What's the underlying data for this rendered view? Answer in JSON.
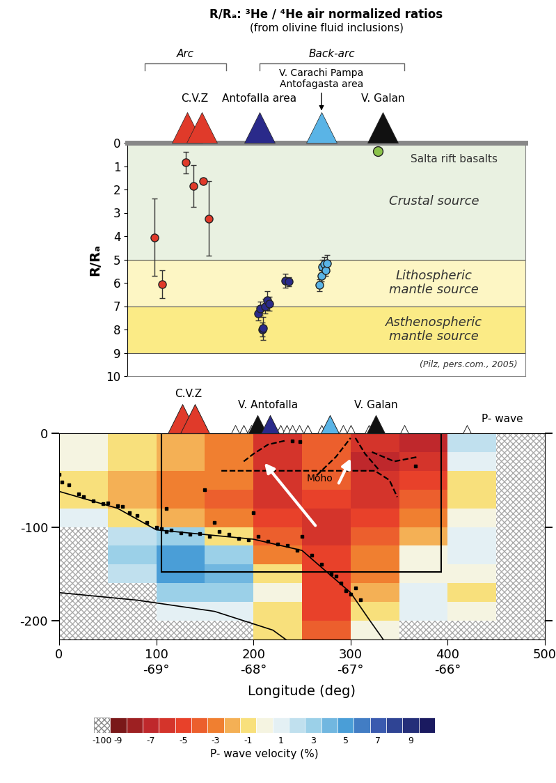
{
  "chart_data": [
    {
      "type": "scatter",
      "title": "R/Rₐ: ³He / ⁴He air normalized ratios",
      "subtitle": "(from olivine fluid inclusions)",
      "y_label": "R/Rₐ",
      "xlim": [
        70,
        480
      ],
      "ylim": [
        10,
        0
      ],
      "yticks": [
        0,
        1,
        2,
        3,
        4,
        5,
        6,
        7,
        8,
        9,
        10
      ],
      "tick_labels": "y",
      "series": [
        {
          "color": "#e03a2a",
          "x": [
            98,
            106,
            130,
            138,
            148,
            154
          ],
          "values": [
            4.05,
            6.05,
            0.85,
            1.85,
            1.65,
            3.25
          ],
          "errors": [
            1.65,
            0.6,
            0.45,
            0.9,
            0.12,
            1.6
          ]
        },
        {
          "color": "#2a2a8a",
          "x": [
            205,
            207,
            209,
            210,
            212,
            214,
            216,
            233,
            236
          ],
          "values": [
            7.3,
            7.1,
            8.0,
            7.95,
            7.0,
            6.75,
            6.9,
            5.9,
            5.95
          ],
          "errors": [
            0.3,
            0.3,
            0.3,
            0.5,
            0.3,
            0.4,
            0.3,
            0.3,
            0.2
          ]
        },
        {
          "color": "#5ab4e6",
          "x": [
            268,
            270,
            271,
            273,
            274,
            276
          ],
          "values": [
            6.1,
            5.7,
            5.3,
            5.2,
            5.45,
            5.15
          ],
          "errors": [
            0.25,
            0.25,
            0.3,
            0.3,
            0.25,
            0.35
          ]
        },
        {
          "color": "#8bc34a",
          "x": [
            328
          ],
          "values": [
            0.35
          ]
        }
      ],
      "bands": [
        {
          "range": [
            0,
            5
          ],
          "label": "Crustal source",
          "color": "#e9f1e1"
        },
        {
          "range": [
            5,
            7
          ],
          "label": "Lithospheric\nmantle source",
          "color": "#fdf6c4"
        },
        {
          "range": [
            7,
            9
          ],
          "label": "Asthenospheric\nmantle source",
          "color": "#fbeb86"
        }
      ],
      "annotations": [
        "Salta rift basalts",
        "(Pilz, pers.com., 2005)"
      ],
      "groups": [
        {
          "label": "Arc",
          "x": [
            88,
            172
          ]
        },
        {
          "label": "Back-arc",
          "x": [
            206,
            355
          ]
        }
      ],
      "volcanoes": [
        {
          "label": "C.V.Z",
          "x": [
            132,
            147
          ],
          "color": "#e03a2a"
        },
        {
          "label": "Antofalla area",
          "x": [
            206
          ],
          "color": "#2a2a8a"
        },
        {
          "label": "V. Carachi Pampa\nAntofagasta area",
          "x": [
            270
          ],
          "color": "#5ab4e6"
        },
        {
          "label": "V. Galan",
          "x": [
            333
          ],
          "color": "#111111"
        }
      ]
    },
    {
      "type": "heatmap",
      "x_label": "Longitude (deg)",
      "xlim": [
        0,
        500
      ],
      "ylim": [
        -220,
        0
      ],
      "xticks": [
        0,
        100,
        200,
        300,
        400,
        500
      ],
      "yticks": [
        0,
        -100,
        -200
      ],
      "longitude_ticks": [
        {
          "value": 100,
          "label": "-69°"
        },
        {
          "value": 200,
          "label": "-68°"
        },
        {
          "value": 300,
          "label": "-67°"
        },
        {
          "value": 400,
          "label": "-66°"
        }
      ],
      "x_edges": [
        0,
        50,
        100,
        150,
        200,
        250,
        300,
        350,
        400,
        450,
        500
      ],
      "y_edges": [
        0,
        -20,
        -40,
        -60,
        -80,
        -100,
        -120,
        -140,
        -160,
        -180,
        -200,
        -220
      ],
      "cells": [
        [
          0,
          -1,
          -2,
          -3,
          -6,
          -4,
          -6,
          -7,
          2,
          null
        ],
        [
          0,
          -1,
          -2,
          -3,
          -6,
          -4,
          -7,
          -6,
          1,
          null
        ],
        [
          -1,
          -2,
          -3,
          -3,
          -6,
          -4,
          -6,
          -5,
          -1,
          null
        ],
        [
          -1,
          -2,
          -3,
          -4,
          -6,
          -5,
          -6,
          -4,
          -1,
          null
        ],
        [
          1,
          -1,
          -2,
          -3,
          -5,
          -6,
          -5,
          -3,
          0,
          null
        ],
        [
          null,
          2,
          3,
          -1,
          -4,
          -6,
          -4,
          -2,
          1,
          null
        ],
        [
          null,
          3,
          5,
          3,
          -3,
          -5,
          -3,
          0,
          1,
          null
        ],
        [
          null,
          2,
          5,
          4,
          -1,
          -5,
          -3,
          0,
          0,
          null
        ],
        [
          null,
          null,
          3,
          3,
          0,
          -5,
          -2,
          1,
          -1,
          null
        ],
        [
          null,
          null,
          1,
          1,
          -1,
          -5,
          -1,
          1,
          0,
          null
        ],
        [
          null,
          null,
          null,
          null,
          -1,
          -4,
          0,
          null,
          null,
          null
        ]
      ],
      "colorbar": {
        "label": "P- wave velocity (%)",
        "range": [
          -10,
          10
        ],
        "boxes": [
          -100,
          -9,
          -8,
          -7,
          -6,
          -5,
          -4,
          -3,
          -2,
          -1,
          0,
          1,
          2,
          3,
          4,
          5,
          6,
          7,
          8,
          9,
          10
        ],
        "ticks": [
          -100,
          -9,
          -7,
          -5,
          -3,
          -1,
          1,
          3,
          5,
          7,
          9
        ]
      },
      "slab_lines": [
        {
          "x": [
            0,
            60,
            100,
            150,
            200,
            250,
            300,
            320,
            335
          ],
          "y": [
            -62,
            -80,
            -103,
            -108,
            -113,
            -125,
            -170,
            -200,
            -222
          ]
        },
        {
          "x": [
            0,
            80,
            160,
            220,
            236
          ],
          "y": [
            -170,
            -178,
            -190,
            -210,
            -222
          ]
        }
      ],
      "hypocenters": {
        "x": [
          0,
          3,
          10,
          20,
          25,
          35,
          45,
          50,
          60,
          65,
          72,
          80,
          90,
          100,
          105,
          110,
          115,
          125,
          135,
          145,
          155,
          165,
          175,
          185,
          195,
          205,
          215,
          225,
          235,
          245,
          250,
          260,
          270,
          280,
          285,
          290,
          295,
          300,
          305,
          310,
          110,
          150,
          160,
          200,
          240,
          248,
          367
        ],
        "y": [
          -44,
          -52,
          -55,
          -65,
          -68,
          -72,
          -75,
          -74,
          -77,
          -78,
          -85,
          -88,
          -95,
          -100,
          -102,
          -105,
          -103,
          -106,
          -108,
          -107,
          -110,
          -105,
          -108,
          -112,
          -114,
          -110,
          -115,
          -118,
          -120,
          -125,
          -110,
          -130,
          -140,
          -150,
          -152,
          -160,
          -168,
          -172,
          -165,
          -178,
          -80,
          -60,
          -95,
          -85,
          -8,
          -9,
          -35
        ]
      },
      "dashed_lines": [
        {
          "x": [
            190,
            200,
            215,
            232
          ],
          "y": [
            -30,
            -22,
            -12,
            -8
          ]
        },
        {
          "x": [
            167,
            325,
            340,
            348
          ],
          "y": [
            -40,
            -40,
            -50,
            -68
          ]
        },
        {
          "x": [
            265,
            285,
            300
          ],
          "y": [
            -45,
            -25,
            -5
          ]
        },
        {
          "x": [
            305,
            315,
            330
          ],
          "y": [
            -5,
            -22,
            -40
          ]
        },
        {
          "x": [
            322,
            345,
            370
          ],
          "y": [
            -20,
            -30,
            -25
          ]
        }
      ],
      "box": {
        "x": [
          105,
          393
        ],
        "y": [
          -148,
          0
        ]
      },
      "arrows": [
        {
          "x": [
            265,
            210
          ],
          "y": [
            -100,
            -30
          ]
        },
        {
          "x": [
            287,
            301
          ],
          "y": [
            -55,
            -25
          ]
        }
      ],
      "volcanoes": {
        "x": [
          127,
          140,
          181,
          190,
          198,
          228,
          234,
          240,
          247,
          256,
          270,
          292,
          300,
          319,
          355,
          420,
          204,
          217,
          279,
          326
        ],
        "colors": [
          "#e03a2a",
          "#e03a2a",
          "#ffffff",
          "#ffffff",
          "#ffffff",
          "#ffffff",
          "#ffffff",
          "#ffffff",
          "#ffffff",
          "#ffffff",
          "#ffffff",
          "#ffffff",
          "#ffffff",
          "#ffffff",
          "#ffffff",
          "#ffffff",
          "#111111",
          "#2a2a8a",
          "#5ab4e6",
          "#111111"
        ]
      },
      "volcano_labels": [
        {
          "text": "C.V.Z",
          "x": 133
        },
        {
          "text": "V. Antofalla",
          "x": 215
        },
        {
          "text": "V. Galan",
          "x": 326
        }
      ],
      "annotations": [
        "Moho",
        "P- wave"
      ]
    }
  ]
}
